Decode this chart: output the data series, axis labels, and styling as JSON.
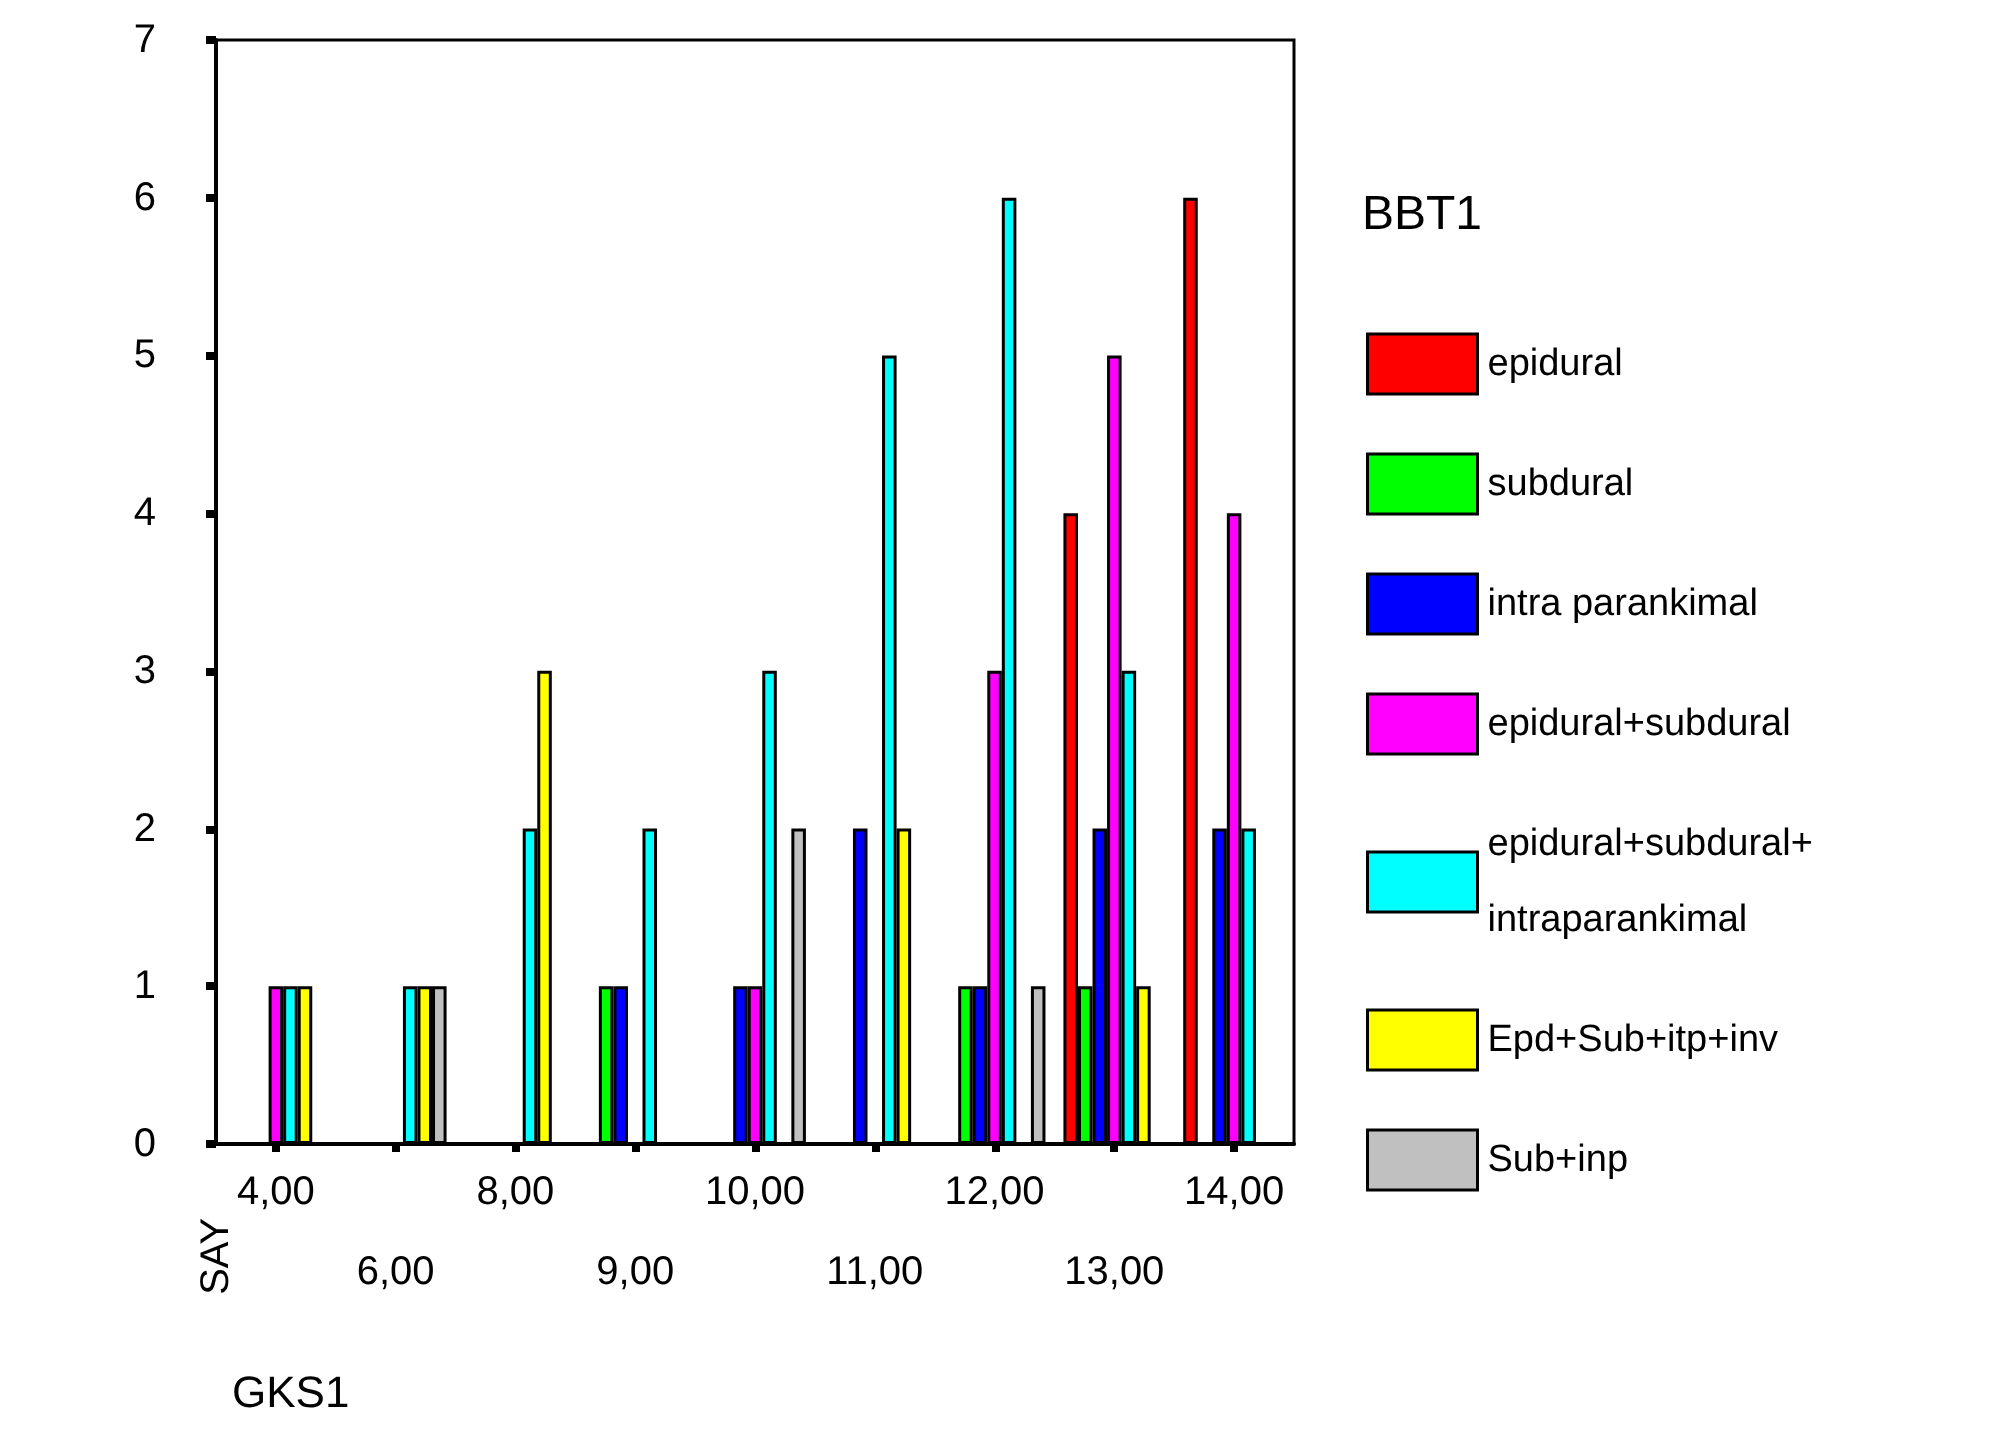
{
  "chart_data": {
    "type": "bar",
    "xlabel": "GKS1",
    "ylabel": "SAY",
    "legend_title": "BBT1",
    "categories": [
      "4,00",
      "6,00",
      "8,00",
      "9,00",
      "10,00",
      "11,00",
      "12,00",
      "13,00",
      "14,00"
    ],
    "series": [
      {
        "name": "epidural",
        "color": "#ff0000",
        "values": [
          null,
          null,
          null,
          null,
          null,
          null,
          null,
          4,
          6
        ]
      },
      {
        "name": "subdural",
        "color": "#00ff00",
        "values": [
          null,
          null,
          null,
          1,
          null,
          null,
          1,
          1,
          null
        ]
      },
      {
        "name": "intra parankimal",
        "color": "#0000ff",
        "values": [
          null,
          null,
          null,
          1,
          1,
          2,
          1,
          2,
          2
        ]
      },
      {
        "name": "epidural+subdural",
        "color": "#ff00ff",
        "values": [
          1,
          null,
          null,
          null,
          1,
          null,
          3,
          5,
          4
        ]
      },
      {
        "name": "epidural+subdural+\nintraparankimal",
        "color": "#00ffff",
        "values": [
          1,
          1,
          2,
          2,
          3,
          5,
          6,
          3,
          2
        ]
      },
      {
        "name": "Epd+Sub+itp+inv",
        "color": "#ffff00",
        "values": [
          1,
          1,
          3,
          null,
          null,
          2,
          null,
          1,
          null
        ]
      },
      {
        "name": "Sub+inp",
        "color": "#c0c0c0",
        "values": [
          null,
          1,
          null,
          null,
          2,
          null,
          1,
          null,
          null
        ]
      }
    ],
    "ylim": [
      0,
      7
    ],
    "yticks": [
      0,
      1,
      2,
      3,
      4,
      5,
      6,
      7
    ],
    "grid": false,
    "legend": "right"
  }
}
